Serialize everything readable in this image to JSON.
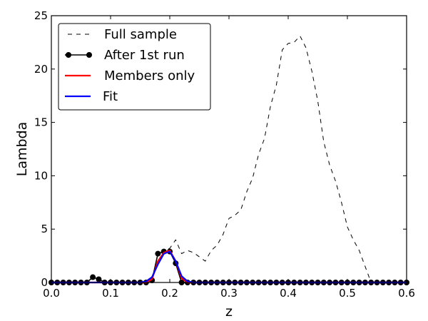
{
  "chart_data": {
    "type": "line",
    "xlabel": "z",
    "ylabel": "Lambda",
    "xlim": [
      0.0,
      0.6
    ],
    "ylim": [
      0,
      25
    ],
    "x_ticks": [
      0.0,
      0.1,
      0.2,
      0.3,
      0.4,
      0.5,
      0.6
    ],
    "x_tick_labels": [
      "0.0",
      "0.1",
      "0.2",
      "0.3",
      "0.4",
      "0.5",
      "0.6"
    ],
    "y_ticks": [
      0,
      5,
      10,
      15,
      20,
      25
    ],
    "y_tick_labels": [
      "0",
      "5",
      "10",
      "15",
      "20",
      "25"
    ],
    "grid": false,
    "legend_position": "upper-left",
    "series": [
      {
        "name": "Full sample",
        "style": "dashed",
        "color": "#000000",
        "x": [
          0.0,
          0.02,
          0.04,
          0.06,
          0.08,
          0.1,
          0.12,
          0.14,
          0.16,
          0.17,
          0.18,
          0.19,
          0.2,
          0.21,
          0.22,
          0.23,
          0.24,
          0.25,
          0.26,
          0.27,
          0.28,
          0.29,
          0.3,
          0.31,
          0.32,
          0.33,
          0.34,
          0.35,
          0.36,
          0.37,
          0.38,
          0.39,
          0.4,
          0.41,
          0.42,
          0.43,
          0.44,
          0.45,
          0.46,
          0.47,
          0.48,
          0.49,
          0.5,
          0.51,
          0.52,
          0.53,
          0.54,
          0.55,
          0.56,
          0.57,
          0.58,
          0.59,
          0.6
        ],
        "y": [
          0,
          0,
          0,
          0,
          0,
          0,
          0,
          0,
          0,
          0.5,
          2.0,
          3.0,
          3.2,
          4.0,
          2.7,
          3.0,
          2.8,
          2.4,
          2.0,
          3.0,
          3.5,
          4.5,
          6.0,
          6.3,
          6.8,
          8.5,
          9.8,
          12.0,
          13.5,
          16.5,
          18.5,
          21.8,
          22.4,
          22.5,
          23.1,
          22.0,
          19.8,
          17.0,
          13.2,
          11.0,
          9.5,
          7.5,
          5.2,
          4.0,
          3.0,
          1.5,
          0,
          0,
          0,
          0,
          0,
          0,
          0
        ]
      },
      {
        "name": "After 1st run",
        "style": "solid-markers",
        "color": "#000000",
        "x": [
          0.0,
          0.01,
          0.02,
          0.03,
          0.04,
          0.05,
          0.06,
          0.07,
          0.08,
          0.09,
          0.1,
          0.11,
          0.12,
          0.13,
          0.14,
          0.15,
          0.16,
          0.17,
          0.18,
          0.19,
          0.2,
          0.21,
          0.22,
          0.23,
          0.24,
          0.25,
          0.26,
          0.27,
          0.28,
          0.29,
          0.3,
          0.31,
          0.32,
          0.33,
          0.34,
          0.35,
          0.36,
          0.37,
          0.38,
          0.39,
          0.4,
          0.41,
          0.42,
          0.43,
          0.44,
          0.45,
          0.46,
          0.47,
          0.48,
          0.49,
          0.5,
          0.51,
          0.52,
          0.53,
          0.54,
          0.55,
          0.56,
          0.57,
          0.58,
          0.59,
          0.6
        ],
        "y": [
          0,
          0,
          0,
          0,
          0,
          0,
          0,
          0.5,
          0.3,
          0,
          0,
          0,
          0,
          0,
          0,
          0,
          0,
          0.2,
          2.7,
          2.9,
          2.9,
          1.8,
          0,
          0,
          0,
          0,
          0,
          0,
          0,
          0,
          0,
          0,
          0,
          0,
          0,
          0,
          0,
          0,
          0,
          0,
          0,
          0,
          0,
          0,
          0,
          0,
          0,
          0,
          0,
          0,
          0,
          0,
          0,
          0,
          0,
          0,
          0,
          0,
          0,
          0,
          0
        ]
      },
      {
        "name": "Members only",
        "style": "solid",
        "color": "#ff0000",
        "x": [
          0.0,
          0.16,
          0.17,
          0.18,
          0.19,
          0.2,
          0.21,
          0.22,
          0.23,
          0.6
        ],
        "y": [
          0,
          0,
          0.3,
          2.0,
          2.8,
          3.0,
          2.0,
          0.4,
          0,
          0
        ]
      },
      {
        "name": "Fit",
        "style": "solid",
        "color": "#0000ff",
        "x": [
          0.0,
          0.15,
          0.16,
          0.17,
          0.18,
          0.19,
          0.2,
          0.21,
          0.22,
          0.23,
          0.24,
          0.6
        ],
        "y": [
          0,
          0,
          0.1,
          0.5,
          1.7,
          2.7,
          2.9,
          2.0,
          0.6,
          0.1,
          0,
          0
        ]
      }
    ]
  }
}
